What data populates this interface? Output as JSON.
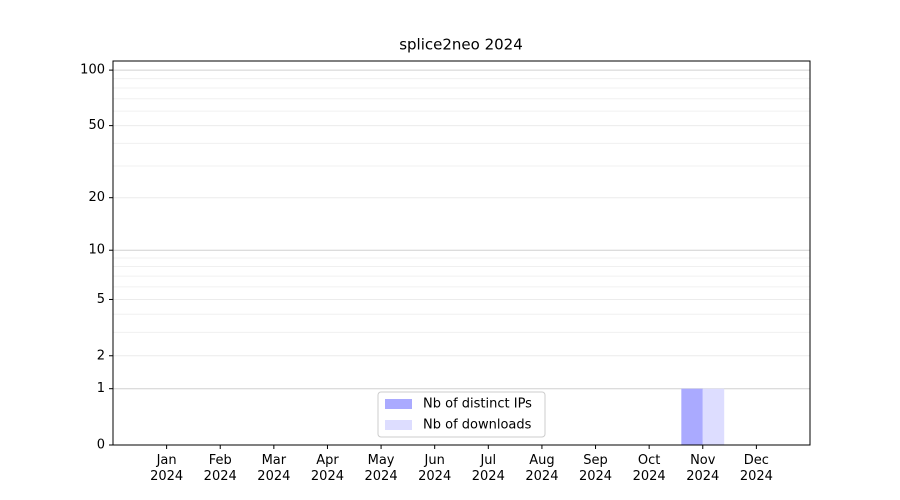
{
  "chart_data": {
    "type": "bar",
    "title": "splice2neo 2024",
    "categories": [
      "Jan\n2024",
      "Feb\n2024",
      "Mar\n2024",
      "Apr\n2024",
      "May\n2024",
      "Jun\n2024",
      "Jul\n2024",
      "Aug\n2024",
      "Sep\n2024",
      "Oct\n2024",
      "Nov\n2024",
      "Dec\n2024"
    ],
    "series": [
      {
        "name": "Nb of distinct IPs",
        "color": "#aaaaff",
        "values": [
          0,
          0,
          0,
          0,
          0,
          0,
          0,
          0,
          0,
          0,
          1,
          0
        ]
      },
      {
        "name": "Nb of downloads",
        "color": "#ddddff",
        "values": [
          0,
          0,
          0,
          0,
          0,
          0,
          0,
          0,
          0,
          0,
          1,
          0
        ]
      }
    ],
    "yscale": "log1p",
    "ylim": [
      0,
      112
    ],
    "yticks": [
      0,
      1,
      2,
      5,
      10,
      20,
      50,
      100
    ],
    "yminor": [
      3,
      4,
      6,
      7,
      8,
      9,
      30,
      40,
      60,
      70,
      80,
      90
    ],
    "grid": true,
    "legend": "lower center"
  }
}
